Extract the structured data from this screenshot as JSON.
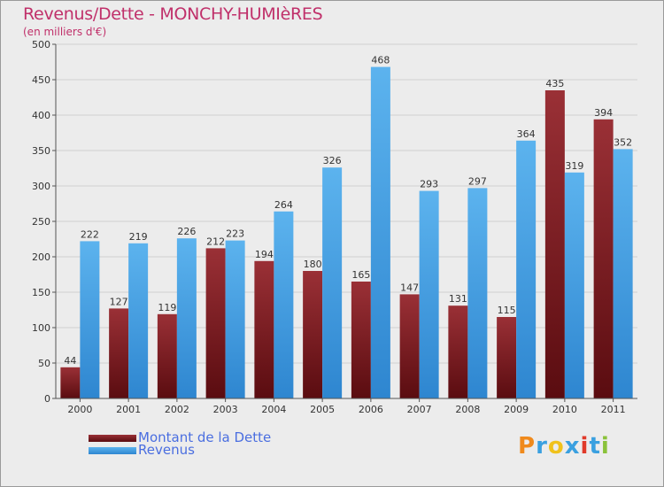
{
  "title": "Revenus/Dette - MONCHY-HUMIèRES",
  "subtitle": "(en milliers d'€)",
  "logo": {
    "letters": [
      "P",
      "r",
      "o",
      "x",
      "i",
      "t",
      "i"
    ],
    "colors": [
      "#f08a1c",
      "#3aa0e0",
      "#f0c21c",
      "#3aa0e0",
      "#e03a2a",
      "#3aa0e0",
      "#8ac23a"
    ]
  },
  "chart_data": {
    "type": "bar",
    "categories": [
      "2000",
      "2001",
      "2002",
      "2003",
      "2004",
      "2005",
      "2006",
      "2007",
      "2008",
      "2009",
      "2010",
      "2011"
    ],
    "series": [
      {
        "name": "Montant de la Dette",
        "color": "#7a1a1e",
        "values": [
          44,
          127,
          119,
          212,
          194,
          180,
          165,
          147,
          131,
          115,
          435,
          394
        ]
      },
      {
        "name": "Revenus",
        "color": "#4ea6e6",
        "values": [
          222,
          219,
          226,
          223,
          264,
          326,
          468,
          293,
          297,
          364,
          319,
          352
        ]
      }
    ],
    "yticks": [
      0,
      50,
      100,
      150,
      200,
      250,
      300,
      350,
      400,
      450,
      500
    ],
    "ylim": [
      0,
      500
    ],
    "grid": true,
    "legend": "bottom-left"
  }
}
